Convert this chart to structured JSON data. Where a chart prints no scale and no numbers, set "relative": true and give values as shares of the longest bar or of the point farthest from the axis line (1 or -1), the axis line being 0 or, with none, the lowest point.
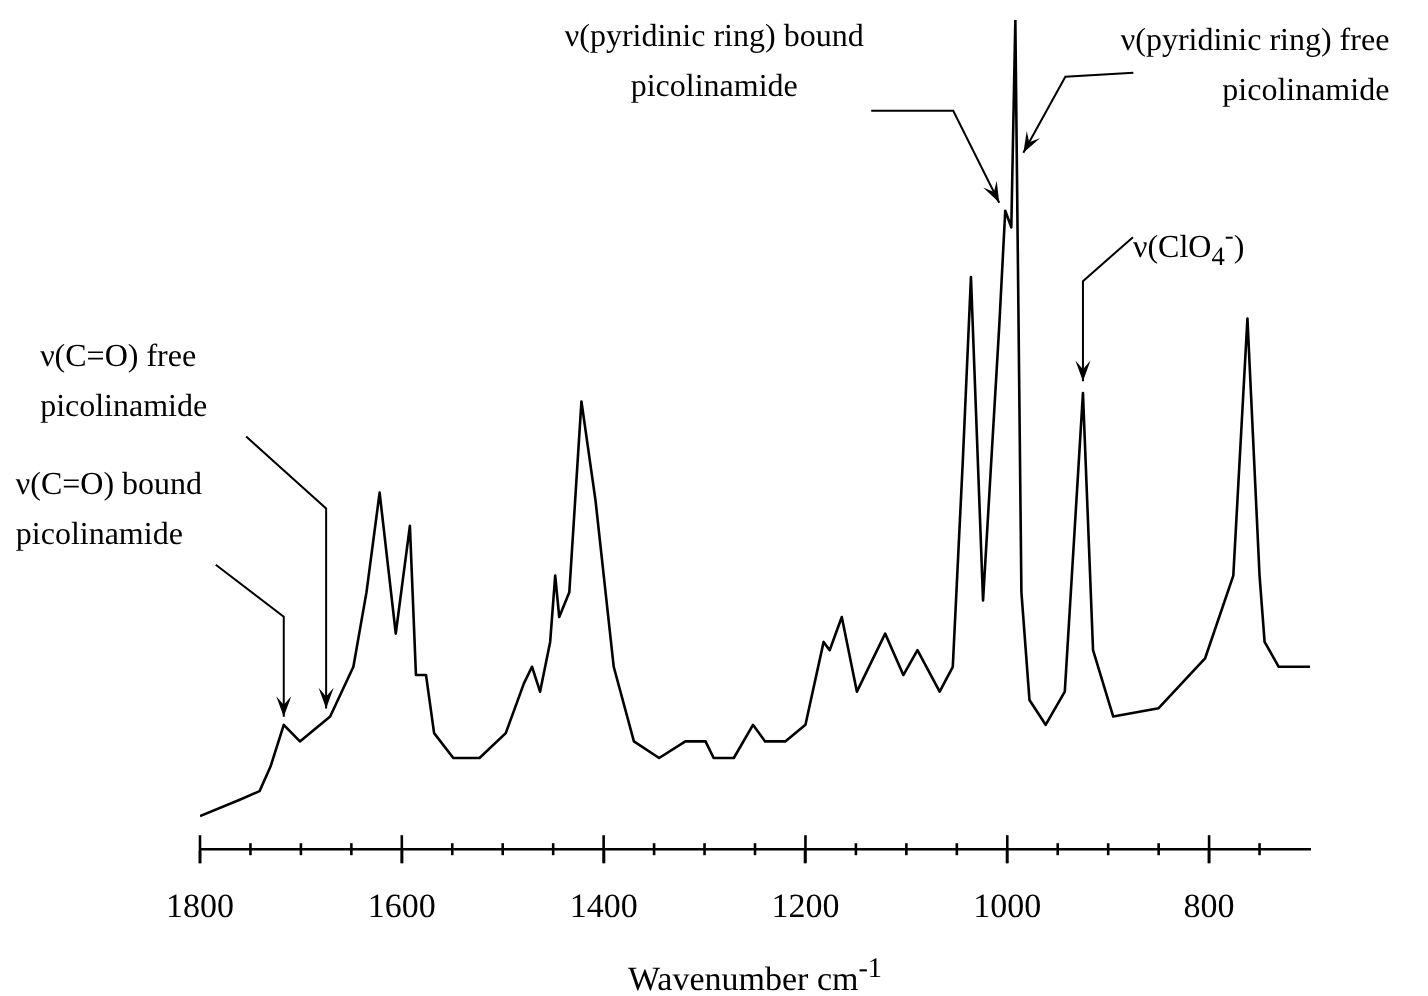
{
  "chart_data": {
    "type": "line",
    "xlabel": "Wavenumber cm$^{-1}$",
    "relative": true,
    "color": "#000000",
    "marker": "none",
    "tick_labels": "x",
    "x": [
      1800,
      1760,
      1741,
      1730,
      1717,
      1701,
      1671,
      1648,
      1635,
      1622,
      1606,
      1592,
      1586,
      1576,
      1568,
      1549,
      1523,
      1497,
      1479,
      1471,
      1463,
      1453,
      1448,
      1444,
      1434,
      1422,
      1408,
      1390,
      1370,
      1345,
      1319,
      1299,
      1291,
      1271,
      1252,
      1240,
      1220,
      1200,
      1182,
      1176,
      1164,
      1149,
      1121,
      1103,
      1089,
      1067,
      1054,
      1044,
      1036,
      1024,
      1008,
      1002,
      996,
      992,
      986,
      978,
      962,
      943,
      925,
      915,
      895,
      850,
      804,
      776,
      762,
      750,
      745,
      731,
      700
    ],
    "values": [
      0.04,
      0.06,
      0.07,
      0.1,
      0.15,
      0.13,
      0.16,
      0.22,
      0.31,
      0.43,
      0.26,
      0.39,
      0.21,
      0.21,
      0.14,
      0.11,
      0.11,
      0.14,
      0.2,
      0.22,
      0.19,
      0.25,
      0.33,
      0.28,
      0.31,
      0.54,
      0.42,
      0.22,
      0.13,
      0.11,
      0.13,
      0.13,
      0.11,
      0.11,
      0.15,
      0.13,
      0.13,
      0.15,
      0.25,
      0.24,
      0.28,
      0.19,
      0.26,
      0.21,
      0.24,
      0.19,
      0.22,
      0.47,
      0.69,
      0.3,
      0.63,
      0.77,
      0.75,
      1,
      0.31,
      0.18,
      0.15,
      0.19,
      0.55,
      0.24,
      0.16,
      0.17,
      0.23,
      0.33,
      0.64,
      0.33,
      0.25,
      0.22,
      0.22
    ],
    "xlim": [
      1800,
      700
    ],
    "xticks": [
      1800,
      {
        "value": 1750,
        "label": null
      },
      {
        "value": 1700,
        "label": null
      },
      {
        "value": 1650,
        "label": null
      },
      1600,
      {
        "value": 1550,
        "label": null
      },
      {
        "value": 1500,
        "label": null
      },
      {
        "value": 1450,
        "label": null
      },
      1400,
      {
        "value": 1350,
        "label": null
      },
      {
        "value": 1300,
        "label": null
      },
      {
        "value": 1250,
        "label": null
      },
      1200,
      {
        "value": 1150,
        "label": null
      },
      {
        "value": 1100,
        "label": null
      },
      {
        "value": 1050,
        "label": null
      },
      1000,
      {
        "value": 950,
        "label": null
      },
      {
        "value": 900,
        "label": null
      },
      {
        "value": 850,
        "label": null
      },
      800,
      {
        "value": 750,
        "label": null
      }
    ],
    "annotations": [
      {
        "text": "ν(C=O) bound picolinamide",
        "x": 1717,
        "y": 0.15
      },
      {
        "text": "ν(C=O) free picolinamide",
        "x": 1675,
        "y": 0.16
      },
      {
        "text": "ν(pyridinic ring) bound picolinamide",
        "x": 1004,
        "y": 0.77
      },
      {
        "text": "ν(pyridinic ring) free picolinamide",
        "x": 992,
        "y": 0.84
      },
      {
        "text": "ν(ClO$_{4}$$^{-}$)",
        "x": 925,
        "y": 0.55
      }
    ]
  }
}
